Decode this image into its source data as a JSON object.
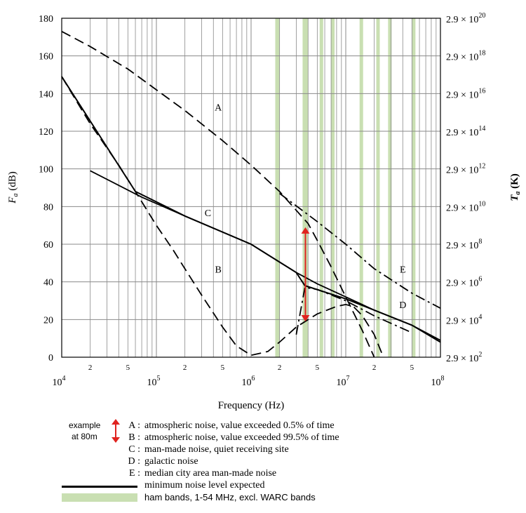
{
  "chart_data": {
    "type": "line",
    "xlabel": "Frequency (Hz)",
    "ylabel_left": "Fa (dB)",
    "ylabel_right": "Ta (K)",
    "x_scale": "log",
    "xlim": [
      10000,
      100000000
    ],
    "ylim": [
      0,
      180
    ],
    "y_ticks": [
      0,
      20,
      40,
      60,
      80,
      100,
      120,
      140,
      160,
      180
    ],
    "x_major_ticks": [
      {
        "base": "10",
        "exp": "4"
      },
      {
        "base": "10",
        "exp": "5"
      },
      {
        "base": "10",
        "exp": "6"
      },
      {
        "base": "10",
        "exp": "7"
      },
      {
        "base": "10",
        "exp": "8"
      }
    ],
    "x_minor_labels": [
      {
        "x": 20000,
        "label": "2"
      },
      {
        "x": 50000,
        "label": "5"
      },
      {
        "x": 200000,
        "label": "2"
      },
      {
        "x": 500000,
        "label": "5"
      },
      {
        "x": 2000000,
        "label": "2"
      },
      {
        "x": 5000000,
        "label": "5"
      },
      {
        "x": 20000000,
        "label": "2"
      },
      {
        "x": 50000000,
        "label": "5"
      }
    ],
    "right_ticks": [
      {
        "fa": 0,
        "base": "2.9 × 10",
        "exp": "2"
      },
      {
        "fa": 20,
        "base": "2.9 × 10",
        "exp": "4"
      },
      {
        "fa": 40,
        "base": "2.9 × 10",
        "exp": "6"
      },
      {
        "fa": 60,
        "base": "2.9 × 10",
        "exp": "8"
      },
      {
        "fa": 80,
        "base": "2.9 × 10",
        "exp": "10"
      },
      {
        "fa": 100,
        "base": "2.9 × 10",
        "exp": "12"
      },
      {
        "fa": 120,
        "base": "2.9 × 10",
        "exp": "14"
      },
      {
        "fa": 140,
        "base": "2.9 × 10",
        "exp": "16"
      },
      {
        "fa": 160,
        "base": "2.9 × 10",
        "exp": "18"
      },
      {
        "fa": 180,
        "base": "2.9 × 10",
        "exp": "20"
      }
    ],
    "ham_bands_mhz": [
      [
        1.8,
        2.0
      ],
      [
        3.5,
        4.0
      ],
      [
        5.3,
        5.4
      ],
      [
        7.0,
        7.3
      ],
      [
        14.0,
        14.35
      ],
      [
        21.0,
        21.45
      ],
      [
        28.0,
        29.7
      ],
      [
        50.0,
        54.0
      ]
    ],
    "series": [
      {
        "name": "A",
        "style": "long-dash",
        "label_at": [
          450000,
          131
        ],
        "points": [
          [
            10000,
            173
          ],
          [
            20000,
            165
          ],
          [
            50000,
            153
          ],
          [
            100000,
            142
          ],
          [
            200000,
            131
          ],
          [
            500000,
            115
          ],
          [
            1000000,
            102
          ],
          [
            2000000,
            88
          ],
          [
            3000000,
            78
          ],
          [
            4000000,
            71
          ],
          [
            5000000,
            62
          ],
          [
            7000000,
            48
          ],
          [
            10000000,
            32
          ],
          [
            15000000,
            14
          ],
          [
            20000000,
            0
          ]
        ]
      },
      {
        "name": "B",
        "style": "long-dash",
        "label_at": [
          450000,
          45
        ],
        "points": [
          [
            10000,
            149
          ],
          [
            20000,
            124
          ],
          [
            40000,
            102
          ],
          [
            60000,
            88
          ],
          [
            100000,
            70
          ],
          [
            150000,
            57
          ],
          [
            200000,
            47
          ],
          [
            300000,
            33
          ],
          [
            500000,
            16
          ],
          [
            700000,
            6
          ],
          [
            1000000,
            1
          ],
          [
            1500000,
            3
          ],
          [
            2000000,
            8
          ],
          [
            3000000,
            16
          ],
          [
            5000000,
            23
          ],
          [
            8000000,
            27
          ],
          [
            10000000,
            28
          ],
          [
            12000000,
            27
          ],
          [
            15000000,
            22
          ],
          [
            20000000,
            12
          ],
          [
            25000000,
            0
          ]
        ]
      },
      {
        "name": "C",
        "style": "solid",
        "label_at": [
          350000,
          75
        ],
        "points": [
          [
            20000,
            99
          ],
          [
            70000,
            85
          ],
          [
            200000,
            75
          ],
          [
            1000000,
            60
          ],
          [
            3000000,
            45
          ],
          [
            5000000,
            39
          ],
          [
            10000000,
            32
          ],
          [
            20000000,
            25
          ],
          [
            50000000,
            17
          ],
          [
            100000000,
            9
          ]
        ]
      },
      {
        "name": "D",
        "style": "dash-dot",
        "label_at": [
          40000000,
          26
        ],
        "points": [
          [
            3000000,
            12
          ],
          [
            3700000,
            37
          ],
          [
            5000000,
            36
          ],
          [
            10000000,
            30
          ],
          [
            20000000,
            22
          ],
          [
            50000000,
            13
          ]
        ]
      },
      {
        "name": "E",
        "style": "dash-dot",
        "label_at": [
          40000000,
          45
        ],
        "points": [
          [
            2000000,
            87
          ],
          [
            5000000,
            72
          ],
          [
            10000000,
            60
          ],
          [
            20000000,
            47
          ],
          [
            50000000,
            34
          ],
          [
            100000000,
            26
          ]
        ]
      },
      {
        "name": "minimum",
        "style": "solid-thick",
        "points": [
          [
            10000,
            149
          ],
          [
            60000,
            88
          ],
          [
            200000,
            75
          ],
          [
            1000000,
            60
          ],
          [
            3000000,
            45
          ],
          [
            3700000,
            38
          ],
          [
            10000000,
            31
          ],
          [
            20000000,
            25
          ],
          [
            50000000,
            17
          ],
          [
            100000000,
            8
          ]
        ]
      }
    ],
    "example_arrow": {
      "x": 3750000,
      "y1": 19,
      "y2": 69
    }
  },
  "legend": {
    "example_line1": "example",
    "example_line2": "at 80m",
    "items": [
      {
        "key": "A :",
        "text": "atmospheric noise, value exceeded 0.5% of time"
      },
      {
        "key": "B :",
        "text": "atmospheric noise, value exceeded 99.5% of time"
      },
      {
        "key": "C :",
        "text": "man-made noise, quiet receiving site"
      },
      {
        "key": "D :",
        "text": "galactic noise"
      },
      {
        "key": "E :",
        "text": "median city area man-made noise"
      }
    ],
    "min_line_text": "minimum noise level expected",
    "ham_text": "ham bands, 1-54 MHz, excl. WARC bands"
  },
  "colors": {
    "ham_band": "#c9dfb2",
    "arrow": "#e0231f",
    "grid": "#8a8a8a"
  }
}
